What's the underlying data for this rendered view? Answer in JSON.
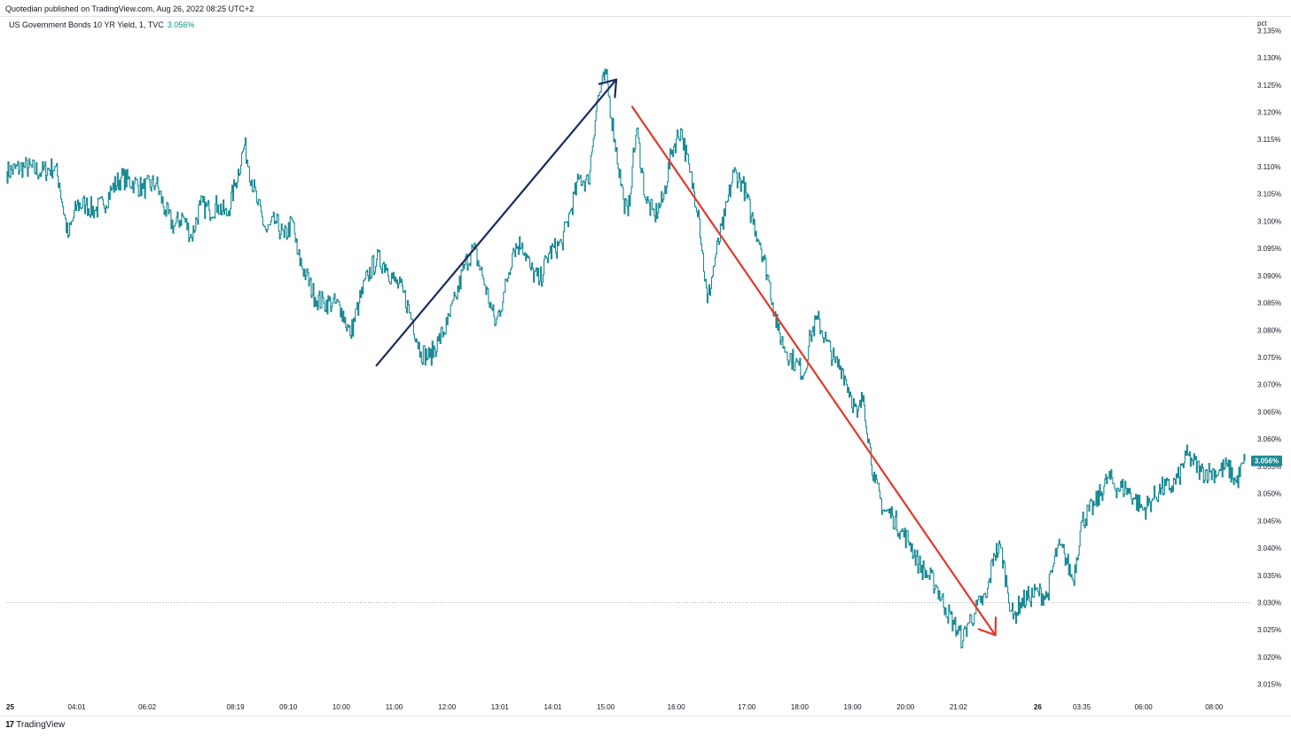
{
  "header": {
    "published": "Quotedian published on TradingView.com, Aug 26, 2022 08:25 UTC+2"
  },
  "symbol": {
    "description": "US Government Bonds 10 YR Yield, 1, TVC",
    "last_value": "3.056%"
  },
  "footer": {
    "logo_glyph": "17",
    "brand": "TradingView"
  },
  "colors": {
    "line": "#1a8a94",
    "up_arrow": "#1b2b5e",
    "down_arrow": "#e0392b",
    "price_label_bg": "#1a8a94",
    "reference_line": "#9598a1"
  },
  "chart_data": {
    "type": "line",
    "title": "US Government Bonds 10 YR Yield, 1, TVC",
    "ylabel": "pct",
    "ylim": [
      3.0125,
      3.1375
    ],
    "y_ticks": [
      "3.015%",
      "3.020%",
      "3.025%",
      "3.030%",
      "3.035%",
      "3.040%",
      "3.045%",
      "3.050%",
      "3.055%",
      "3.060%",
      "3.065%",
      "3.070%",
      "3.075%",
      "3.080%",
      "3.085%",
      "3.090%",
      "3.095%",
      "3.100%",
      "3.105%",
      "3.110%",
      "3.115%",
      "3.120%",
      "3.125%",
      "3.130%",
      "3.135%"
    ],
    "x_ticks": [
      "25",
      "04:01",
      "06:02",
      "08:19",
      "09:10",
      "10:00",
      "11:00",
      "12:00",
      "13:01",
      "14:01",
      "15:00",
      "16:00",
      "17:00",
      "18:00",
      "19:00",
      "20:00",
      "21:02",
      "26",
      "03:35",
      "06:00",
      "08:00"
    ],
    "x_tick_index": [
      0,
      80,
      160,
      260,
      320,
      380,
      440,
      500,
      560,
      620,
      680,
      760,
      840,
      900,
      960,
      1020,
      1080,
      1170,
      1220,
      1290,
      1370
    ],
    "x_index_range": [
      0,
      1410
    ],
    "reference_value": 3.03,
    "last_value": 3.056,
    "anchors": [
      [
        0,
        3.109
      ],
      [
        20,
        3.11
      ],
      [
        40,
        3.109
      ],
      [
        55,
        3.11
      ],
      [
        60,
        3.107
      ],
      [
        70,
        3.097
      ],
      [
        80,
        3.103
      ],
      [
        90,
        3.103
      ],
      [
        100,
        3.102
      ],
      [
        110,
        3.103
      ],
      [
        120,
        3.106
      ],
      [
        130,
        3.108
      ],
      [
        145,
        3.107
      ],
      [
        155,
        3.106
      ],
      [
        170,
        3.107
      ],
      [
        180,
        3.102
      ],
      [
        190,
        3.099
      ],
      [
        200,
        3.101
      ],
      [
        210,
        3.097
      ],
      [
        220,
        3.103
      ],
      [
        230,
        3.102
      ],
      [
        240,
        3.103
      ],
      [
        250,
        3.101
      ],
      [
        260,
        3.107
      ],
      [
        270,
        3.114
      ],
      [
        275,
        3.11
      ],
      [
        285,
        3.103
      ],
      [
        295,
        3.098
      ],
      [
        305,
        3.1
      ],
      [
        315,
        3.097
      ],
      [
        325,
        3.1
      ],
      [
        330,
        3.094
      ],
      [
        340,
        3.09
      ],
      [
        350,
        3.086
      ],
      [
        360,
        3.085
      ],
      [
        370,
        3.085
      ],
      [
        380,
        3.084
      ],
      [
        390,
        3.079
      ],
      [
        400,
        3.085
      ],
      [
        410,
        3.09
      ],
      [
        420,
        3.093
      ],
      [
        430,
        3.092
      ],
      [
        440,
        3.089
      ],
      [
        450,
        3.087
      ],
      [
        460,
        3.082
      ],
      [
        470,
        3.076
      ],
      [
        480,
        3.075
      ],
      [
        490,
        3.078
      ],
      [
        500,
        3.081
      ],
      [
        510,
        3.086
      ],
      [
        520,
        3.092
      ],
      [
        530,
        3.095
      ],
      [
        540,
        3.09
      ],
      [
        550,
        3.084
      ],
      [
        555,
        3.081
      ],
      [
        565,
        3.087
      ],
      [
        575,
        3.095
      ],
      [
        585,
        3.096
      ],
      [
        595,
        3.091
      ],
      [
        605,
        3.089
      ],
      [
        615,
        3.094
      ],
      [
        630,
        3.096
      ],
      [
        640,
        3.102
      ],
      [
        650,
        3.108
      ],
      [
        660,
        3.107
      ],
      [
        670,
        3.122
      ],
      [
        680,
        3.127
      ],
      [
        690,
        3.115
      ],
      [
        700,
        3.104
      ],
      [
        705,
        3.101
      ],
      [
        710,
        3.11
      ],
      [
        715,
        3.117
      ],
      [
        725,
        3.104
      ],
      [
        735,
        3.101
      ],
      [
        745,
        3.104
      ],
      [
        755,
        3.113
      ],
      [
        765,
        3.117
      ],
      [
        775,
        3.109
      ],
      [
        785,
        3.102
      ],
      [
        795,
        3.085
      ],
      [
        805,
        3.094
      ],
      [
        815,
        3.101
      ],
      [
        825,
        3.109
      ],
      [
        835,
        3.107
      ],
      [
        845,
        3.101
      ],
      [
        855,
        3.096
      ],
      [
        865,
        3.089
      ],
      [
        875,
        3.08
      ],
      [
        885,
        3.076
      ],
      [
        895,
        3.074
      ],
      [
        905,
        3.072
      ],
      [
        912,
        3.079
      ],
      [
        920,
        3.082
      ],
      [
        930,
        3.078
      ],
      [
        940,
        3.074
      ],
      [
        948,
        3.073
      ],
      [
        958,
        3.068
      ],
      [
        965,
        3.064
      ],
      [
        972,
        3.068
      ],
      [
        978,
        3.06
      ],
      [
        985,
        3.052
      ],
      [
        995,
        3.047
      ],
      [
        1005,
        3.046
      ],
      [
        1015,
        3.043
      ],
      [
        1025,
        3.041
      ],
      [
        1035,
        3.037
      ],
      [
        1045,
        3.035
      ],
      [
        1055,
        3.033
      ],
      [
        1065,
        3.029
      ],
      [
        1075,
        3.026
      ],
      [
        1085,
        3.023
      ],
      [
        1090,
        3.026
      ],
      [
        1098,
        3.028
      ],
      [
        1105,
        3.03
      ],
      [
        1112,
        3.031
      ],
      [
        1120,
        3.039
      ],
      [
        1128,
        3.04
      ],
      [
        1135,
        3.033
      ],
      [
        1142,
        3.027
      ],
      [
        1150,
        3.03
      ],
      [
        1160,
        3.031
      ],
      [
        1170,
        3.032
      ],
      [
        1180,
        3.031
      ],
      [
        1192,
        3.04
      ],
      [
        1200,
        3.039
      ],
      [
        1210,
        3.034
      ],
      [
        1220,
        3.045
      ],
      [
        1235,
        3.048
      ],
      [
        1250,
        3.053
      ],
      [
        1260,
        3.051
      ],
      [
        1270,
        3.051
      ],
      [
        1280,
        3.049
      ],
      [
        1290,
        3.047
      ],
      [
        1300,
        3.049
      ],
      [
        1310,
        3.051
      ],
      [
        1320,
        3.051
      ],
      [
        1330,
        3.053
      ],
      [
        1338,
        3.057
      ],
      [
        1345,
        3.056
      ],
      [
        1355,
        3.054
      ],
      [
        1365,
        3.054
      ],
      [
        1375,
        3.054
      ],
      [
        1385,
        3.055
      ],
      [
        1395,
        3.052
      ],
      [
        1405,
        3.056
      ]
    ],
    "annotations": [
      {
        "kind": "arrow",
        "color": "up_arrow",
        "from": [
          420,
          3.0735
        ],
        "to": [
          692,
          3.126
        ]
      },
      {
        "kind": "arrow",
        "color": "down_arrow",
        "from": [
          710,
          3.121
        ],
        "to": [
          1122,
          3.024
        ]
      }
    ]
  }
}
